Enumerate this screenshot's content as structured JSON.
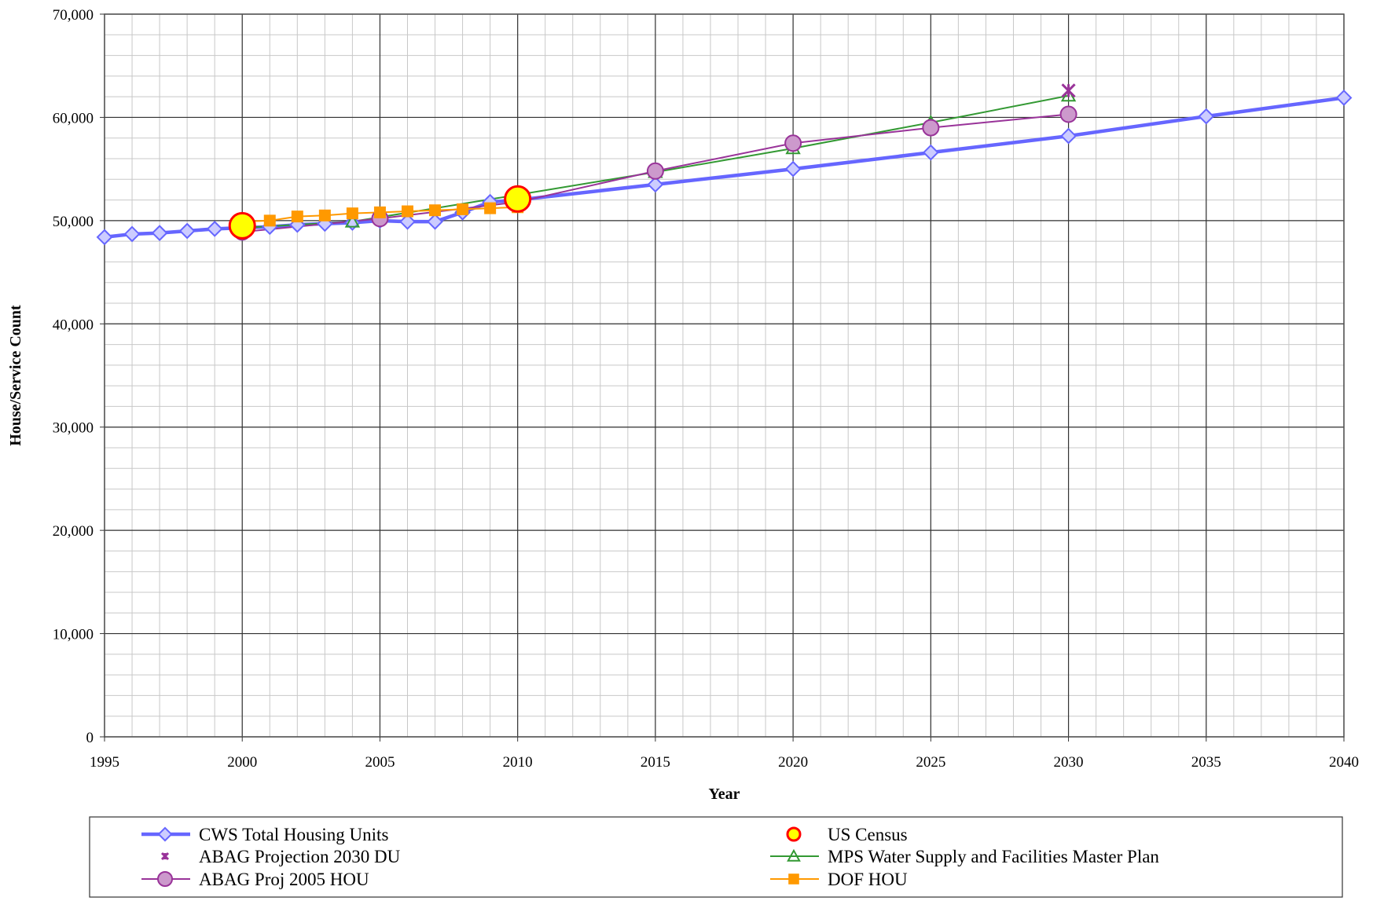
{
  "chart_data": {
    "type": "line",
    "title": "",
    "xlabel": "Year",
    "ylabel": "House/Service Count",
    "xlim": [
      1995,
      2040
    ],
    "ylim": [
      0,
      70000
    ],
    "x_major_ticks": [
      1995,
      2000,
      2005,
      2010,
      2015,
      2020,
      2025,
      2030,
      2035,
      2040
    ],
    "x_tick_labels": [
      "1995",
      "2000",
      "2005",
      "2010",
      "2015",
      "2020",
      "2025",
      "2030",
      "2035",
      "2040"
    ],
    "y_major_ticks": [
      0,
      10000,
      20000,
      30000,
      40000,
      50000,
      60000,
      70000
    ],
    "y_tick_labels": [
      "0",
      "10,000",
      "20,000",
      "30,000",
      "40,000",
      "50,000",
      "60,000",
      "70,000"
    ],
    "x_minor_step": 1,
    "y_minor_step": 2000,
    "grid": true,
    "legend_position": "bottom",
    "series": [
      {
        "name": "CWS Total Housing Units",
        "marker": "diamond",
        "color": "#6666ff",
        "marker_fill": "#ccccff",
        "line": true,
        "x": [
          1995,
          1996,
          1997,
          1998,
          1999,
          2000,
          2001,
          2002,
          2003,
          2004,
          2005,
          2006,
          2007,
          2008,
          2009,
          2010,
          2015,
          2020,
          2025,
          2030,
          2035,
          2040
        ],
        "y": [
          48400,
          48700,
          48800,
          49000,
          49200,
          49300,
          49400,
          49600,
          49700,
          49800,
          50000,
          49900,
          49900,
          50800,
          51800,
          52000,
          53500,
          55000,
          56600,
          58200,
          60100,
          61900
        ]
      },
      {
        "name": "US Census",
        "marker": "circle",
        "color": "#ff0000",
        "marker_fill": "#ffff00",
        "line": false,
        "x": [
          2000,
          2010
        ],
        "y": [
          49500,
          52100
        ]
      },
      {
        "name": "ABAG Projection 2030 DU",
        "marker": "asterisk",
        "color": "#993399",
        "line": false,
        "x": [
          2030
        ],
        "y": [
          62600
        ]
      },
      {
        "name": "MPS Water Supply and Facilities Master Plan",
        "marker": "triangle",
        "color": "#339933",
        "line": true,
        "x": [
          2000,
          2004,
          2010,
          2015,
          2020,
          2025,
          2030
        ],
        "y": [
          49300,
          49900,
          52500,
          54700,
          57000,
          59500,
          62100
        ]
      },
      {
        "name": "ABAG Proj 2005 HOU",
        "marker": "circle",
        "color": "#993399",
        "marker_fill": "#cc99cc",
        "line": true,
        "x": [
          2000,
          2005,
          2010,
          2015,
          2020,
          2025,
          2030
        ],
        "y": [
          48900,
          50200,
          51800,
          54800,
          57500,
          59000,
          60300
        ]
      },
      {
        "name": "DOF HOU",
        "marker": "square",
        "color": "#ff9900",
        "marker_fill": "#ff9900",
        "line": true,
        "x": [
          2000,
          2001,
          2002,
          2003,
          2004,
          2005,
          2006,
          2007,
          2008,
          2009,
          2010
        ],
        "y": [
          49900,
          50000,
          50400,
          50500,
          50700,
          50800,
          50900,
          51000,
          51100,
          51200,
          51300
        ]
      }
    ]
  }
}
